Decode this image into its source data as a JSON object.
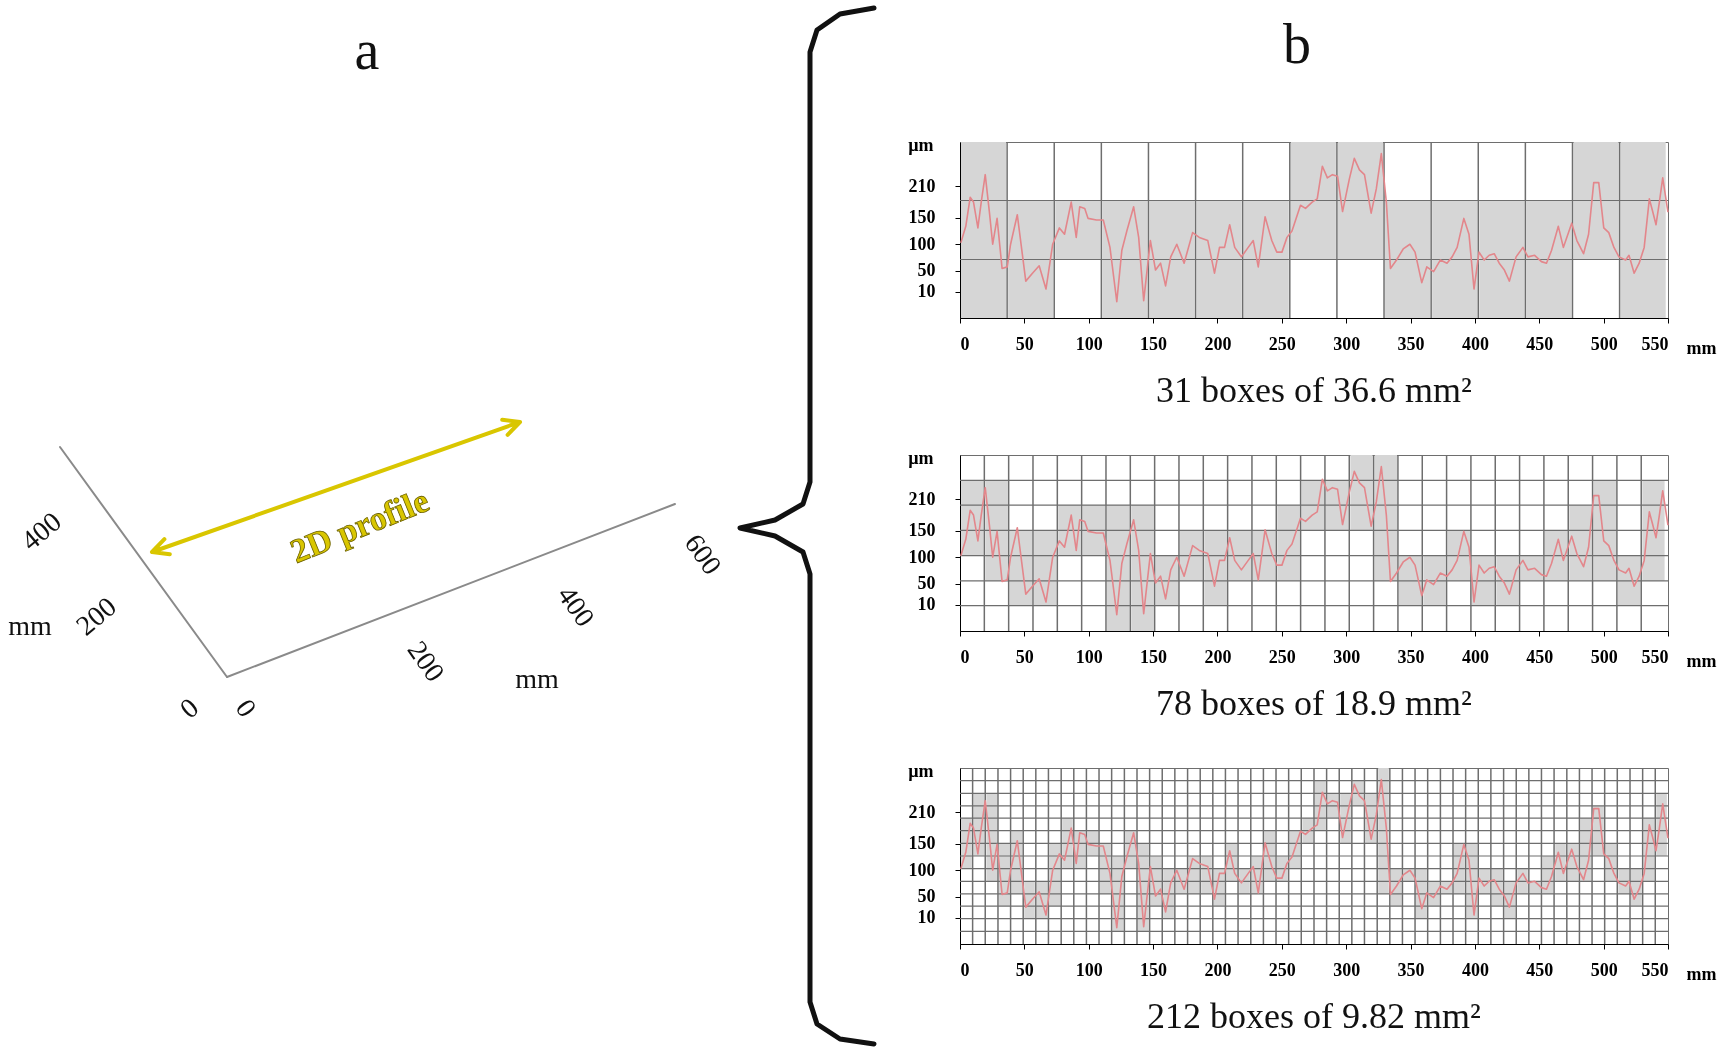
{
  "chart_data": [
    {
      "type": "other",
      "title": "a",
      "annotations": [
        "400",
        "200",
        "0",
        "mm",
        "0",
        "200",
        "400",
        "600",
        "mm",
        "2D profile"
      ]
    },
    {
      "type": "bar",
      "title": "b",
      "xlabel": "mm",
      "ylabel": "µm",
      "annotations": [
        "31 boxes of 36.6 mm²"
      ],
      "xlim": [
        0,
        550
      ],
      "xticks": [
        0,
        50,
        100,
        150,
        200,
        250,
        300,
        350,
        400,
        450,
        500,
        550
      ],
      "ylim": [
        -40,
        294
      ],
      "yticks": [
        10,
        50,
        100,
        150,
        210
      ],
      "ref_lines": [
        {
          "axis": "x",
          "value": 36.6,
          "color": "#6e6e6e"
        },
        {
          "axis": "x",
          "value": 73.2,
          "color": "#6e6e6e"
        },
        {
          "axis": "x",
          "value": 109.8,
          "color": "#6e6e6e"
        },
        {
          "axis": "x",
          "value": 146.4,
          "color": "#6e6e6e"
        },
        {
          "axis": "x",
          "value": 183,
          "color": "#6e6e6e"
        },
        {
          "axis": "x",
          "value": 219.6,
          "color": "#6e6e6e"
        },
        {
          "axis": "x",
          "value": 256.2,
          "color": "#6e6e6e"
        },
        {
          "axis": "x",
          "value": 292.8,
          "color": "#6e6e6e"
        },
        {
          "axis": "x",
          "value": 329.4,
          "color": "#6e6e6e"
        },
        {
          "axis": "x",
          "value": 366,
          "color": "#6e6e6e"
        },
        {
          "axis": "x",
          "value": 402.6,
          "color": "#6e6e6e"
        },
        {
          "axis": "x",
          "value": 439.2,
          "color": "#6e6e6e"
        },
        {
          "axis": "x",
          "value": 475.8,
          "color": "#6e6e6e"
        },
        {
          "axis": "x",
          "value": 512.4,
          "color": "#6e6e6e"
        },
        {
          "axis": "y",
          "value": 71,
          "color": "#6e6e6e"
        },
        {
          "axis": "y",
          "value": 183,
          "color": "#6e6e6e"
        }
      ],
      "series": [
        {
          "type": "bar",
          "color": "#d6d6d6",
          "x": [
            18.3,
            54.9,
            91.5,
            128.1,
            164.7,
            201.3,
            237.9,
            274.5,
            311.1,
            347.7,
            384.3,
            420.9,
            457.5,
            494.1,
            530.7
          ],
          "base": [
            -40,
            -40,
            71,
            -40,
            -40,
            -40,
            -40,
            71,
            71,
            -40,
            -40,
            -40,
            -40,
            71,
            -40
          ],
          "values": [
            334,
            223,
            112,
            223,
            223,
            223,
            223,
            223,
            223,
            223,
            223,
            223,
            223,
            223,
            334
          ]
        },
        {
          "type": "line",
          "color": "#e3868b",
          "x": [
            0.8,
            4.5,
            7.9,
            10.5,
            13.9,
            16.5,
            19.6,
            22.8,
            25.4,
            28.8,
            32.7,
            36.7,
            39.3,
            44.5,
            51.1,
            56.3,
            61.5,
            66.8,
            72,
            77.2,
            81.2,
            86.4,
            90.3,
            93,
            96.9,
            99.5,
            106,
            111.3,
            116.5,
            121.8,
            125.7,
            129.6,
            134.9,
            138.8,
            142.7,
            147.9,
            151.9,
            155.8,
            159.7,
            163.7,
            168.4,
            174.1,
            180.7,
            185.9,
            192.5,
            197.7,
            201.6,
            205.5,
            209.5,
            213.4,
            218.6,
            223.9,
            227.8,
            231.7,
            237,
            242.2,
            246.1,
            250.1,
            254,
            257.9,
            264.5,
            268.4,
            273.6,
            277.5,
            281.5,
            285.4,
            289.3,
            293.3,
            297.2,
            302.4,
            306.3,
            310.3,
            314.2,
            319.4,
            323.4,
            327.3,
            331.2,
            334.4,
            339.1,
            344.3,
            349.5,
            353.5,
            358.7,
            362.6,
            367.9,
            373.1,
            378.3,
            382.3,
            386.2,
            391.4,
            395.4,
            399.3,
            403.2,
            407.2,
            411.1,
            415,
            418.9,
            422.9,
            426.8,
            432,
            437.3,
            441.2,
            446.4,
            451.7,
            455.6,
            459.5,
            464.8,
            468.7,
            475.2,
            479.2,
            484.4,
            488.3,
            492.3,
            496.2,
            500.1,
            504,
            508,
            511.9,
            517.1,
            519.7,
            523.7,
            527.6,
            531.5,
            535.5,
            538.1,
            540.7,
            543.3,
            545.9,
            549.9
          ],
          "values": [
            104,
            134,
            189,
            180,
            131,
            180,
            232,
            162,
            100,
            149,
            54,
            57,
            100,
            156,
            30,
            45,
            59,
            15,
            100,
            131,
            119,
            180,
            113,
            171,
            168,
            149,
            146,
            146,
            94,
            -9,
            88,
            125,
            171,
            113,
            -7,
            107,
            51,
            64,
            21,
            76,
            100,
            64,
            122,
            113,
            107,
            45,
            94,
            94,
            137,
            94,
            76,
            94,
            107,
            57,
            152,
            107,
            85,
            85,
            113,
            125,
            174,
            168,
            180,
            186,
            248,
            226,
            232,
            229,
            162,
            223,
            263,
            241,
            232,
            159,
            205,
            272,
            180,
            54,
            70,
            91,
            100,
            85,
            27,
            57,
            48,
            70,
            64,
            76,
            94,
            149,
            119,
            15,
            85,
            70,
            79,
            82,
            64,
            51,
            30,
            76,
            94,
            76,
            79,
            67,
            64,
            88,
            134,
            94,
            140,
            107,
            82,
            119,
            217,
            217,
            131,
            122,
            94,
            76,
            70,
            79,
            45,
            64,
            94,
            186,
            162,
            137,
            180,
            226,
            162
          ]
        }
      ]
    },
    {
      "type": "bar",
      "xlabel": "mm",
      "ylabel": "µm",
      "annotations": [
        "78 boxes of 18.9 mm²"
      ],
      "xlim": [
        0,
        550
      ],
      "xticks": [
        0,
        50,
        100,
        150,
        200,
        250,
        300,
        350,
        400,
        450,
        500,
        550
      ],
      "ylim": [
        -40,
        294
      ],
      "yticks": [
        10,
        50,
        100,
        150,
        210
      ],
      "ref_lines": [
        {
          "axis": "x",
          "value": 18.9,
          "color": "#6e6e6e"
        },
        {
          "axis": "x",
          "value": 37.8,
          "color": "#6e6e6e"
        },
        {
          "axis": "x",
          "value": 56.7,
          "color": "#6e6e6e"
        },
        {
          "axis": "x",
          "value": 75.6,
          "color": "#6e6e6e"
        },
        {
          "axis": "x",
          "value": 94.5,
          "color": "#6e6e6e"
        },
        {
          "axis": "x",
          "value": 113.4,
          "color": "#6e6e6e"
        },
        {
          "axis": "x",
          "value": 132.3,
          "color": "#6e6e6e"
        },
        {
          "axis": "x",
          "value": 151.2,
          "color": "#6e6e6e"
        },
        {
          "axis": "x",
          "value": 170.1,
          "color": "#6e6e6e"
        },
        {
          "axis": "x",
          "value": 189,
          "color": "#6e6e6e"
        },
        {
          "axis": "x",
          "value": 207.9,
          "color": "#6e6e6e"
        },
        {
          "axis": "x",
          "value": 226.8,
          "color": "#6e6e6e"
        },
        {
          "axis": "x",
          "value": 245.7,
          "color": "#6e6e6e"
        },
        {
          "axis": "x",
          "value": 264.6,
          "color": "#6e6e6e"
        },
        {
          "axis": "x",
          "value": 283.5,
          "color": "#6e6e6e"
        },
        {
          "axis": "x",
          "value": 302.4,
          "color": "#6e6e6e"
        },
        {
          "axis": "x",
          "value": 321.3,
          "color": "#6e6e6e"
        },
        {
          "axis": "x",
          "value": 340.2,
          "color": "#6e6e6e"
        },
        {
          "axis": "x",
          "value": 359.1,
          "color": "#6e6e6e"
        },
        {
          "axis": "x",
          "value": 378,
          "color": "#6e6e6e"
        },
        {
          "axis": "x",
          "value": 396.9,
          "color": "#6e6e6e"
        },
        {
          "axis": "x",
          "value": 415.8,
          "color": "#6e6e6e"
        },
        {
          "axis": "x",
          "value": 434.7,
          "color": "#6e6e6e"
        },
        {
          "axis": "x",
          "value": 453.6,
          "color": "#6e6e6e"
        },
        {
          "axis": "x",
          "value": 472.5,
          "color": "#6e6e6e"
        },
        {
          "axis": "x",
          "value": 491.4,
          "color": "#6e6e6e"
        },
        {
          "axis": "x",
          "value": 510.3,
          "color": "#6e6e6e"
        },
        {
          "axis": "x",
          "value": 529.2,
          "color": "#6e6e6e"
        },
        {
          "axis": "y",
          "value": 8,
          "color": "#6e6e6e"
        },
        {
          "axis": "y",
          "value": 55,
          "color": "#6e6e6e"
        },
        {
          "axis": "y",
          "value": 103,
          "color": "#6e6e6e"
        },
        {
          "axis": "y",
          "value": 151,
          "color": "#6e6e6e"
        },
        {
          "axis": "y",
          "value": 199,
          "color": "#6e6e6e"
        },
        {
          "axis": "y",
          "value": 246,
          "color": "#6e6e6e"
        }
      ],
      "series": [
        {
          "type": "bar",
          "color": "#d6d6d6",
          "x": [
            9.5,
            28.4,
            47.3,
            66.2,
            85.1,
            104,
            122.9,
            141.8,
            160.7,
            179.6,
            198.5,
            217.4,
            236.3,
            255.2,
            274.1,
            293,
            311.9,
            330.8,
            349.7,
            368.6,
            387.5,
            406.4,
            425.3,
            444.2,
            463.1,
            482,
            500.9,
            519.8,
            538.7
          ],
          "base": [
            103,
            55,
            8,
            8,
            103,
            103,
            -40,
            -40,
            8,
            55,
            8,
            55,
            55,
            55,
            151,
            151,
            151,
            55,
            8,
            8,
            55,
            8,
            8,
            55,
            55,
            55,
            55,
            8,
            55
          ],
          "values": [
            143,
            191,
            143,
            143,
            96,
            96,
            239,
            239,
            95,
            96,
            143,
            96,
            96,
            144,
            95,
            95,
            143,
            239,
            95,
            95,
            96,
            95,
            95,
            48,
            96,
            144,
            191,
            95,
            191
          ]
        },
        {
          "type": "line",
          "color": "#e3868b",
          "x": [
            0.8,
            4.5,
            7.9,
            10.5,
            13.9,
            16.5,
            19.6,
            22.8,
            25.4,
            28.8,
            32.7,
            36.7,
            39.3,
            44.5,
            51.1,
            56.3,
            61.5,
            66.8,
            72,
            77.2,
            81.2,
            86.4,
            90.3,
            93,
            96.9,
            99.5,
            106,
            111.3,
            116.5,
            121.8,
            125.7,
            129.6,
            134.9,
            138.8,
            142.7,
            147.9,
            151.9,
            155.8,
            159.7,
            163.7,
            168.4,
            174.1,
            180.7,
            185.9,
            192.5,
            197.7,
            201.6,
            205.5,
            209.5,
            213.4,
            218.6,
            223.9,
            227.8,
            231.7,
            237,
            242.2,
            246.1,
            250.1,
            254,
            257.9,
            264.5,
            268.4,
            273.6,
            277.5,
            281.5,
            285.4,
            289.3,
            293.3,
            297.2,
            302.4,
            306.3,
            310.3,
            314.2,
            319.4,
            323.4,
            327.3,
            331.2,
            334.4,
            339.1,
            344.3,
            349.5,
            353.5,
            358.7,
            362.6,
            367.9,
            373.1,
            378.3,
            382.3,
            386.2,
            391.4,
            395.4,
            399.3,
            403.2,
            407.2,
            411.1,
            415,
            418.9,
            422.9,
            426.8,
            432,
            437.3,
            441.2,
            446.4,
            451.7,
            455.6,
            459.5,
            464.8,
            468.7,
            475.2,
            479.2,
            484.4,
            488.3,
            492.3,
            496.2,
            500.1,
            504,
            508,
            511.9,
            517.1,
            519.7,
            523.7,
            527.6,
            531.5,
            535.5,
            538.1,
            540.7,
            543.3,
            545.9,
            549.9
          ],
          "values": [
            104,
            134,
            189,
            180,
            131,
            180,
            232,
            162,
            100,
            149,
            54,
            57,
            100,
            156,
            30,
            45,
            59,
            15,
            100,
            131,
            119,
            180,
            113,
            171,
            168,
            149,
            146,
            146,
            94,
            -9,
            88,
            125,
            171,
            113,
            -7,
            107,
            51,
            64,
            21,
            76,
            100,
            64,
            122,
            113,
            107,
            45,
            94,
            94,
            137,
            94,
            76,
            94,
            107,
            57,
            152,
            107,
            85,
            85,
            113,
            125,
            174,
            168,
            180,
            186,
            248,
            226,
            232,
            229,
            162,
            223,
            263,
            241,
            232,
            159,
            205,
            272,
            180,
            54,
            70,
            91,
            100,
            85,
            27,
            57,
            48,
            70,
            64,
            76,
            94,
            149,
            119,
            15,
            85,
            70,
            79,
            82,
            64,
            51,
            30,
            76,
            94,
            76,
            79,
            67,
            64,
            88,
            134,
            94,
            140,
            107,
            82,
            119,
            217,
            217,
            131,
            122,
            94,
            76,
            70,
            79,
            45,
            64,
            94,
            186,
            162,
            137,
            180,
            226,
            162
          ]
        }
      ]
    },
    {
      "type": "bar",
      "xlabel": "mm",
      "ylabel": "µm",
      "annotations": [
        "212 boxes of 9.82 mm²"
      ],
      "xlim": [
        0,
        550
      ],
      "xticks": [
        0,
        50,
        100,
        150,
        200,
        250,
        300,
        350,
        400,
        450,
        500,
        550
      ],
      "ylim": [
        -40,
        294
      ],
      "yticks": [
        10,
        50,
        100,
        150,
        210
      ],
      "ref_lines": [
        {
          "axis": "x",
          "value": 9.8,
          "color": "#6e6e6e"
        },
        {
          "axis": "x",
          "value": 19.6,
          "color": "#6e6e6e"
        },
        {
          "axis": "x",
          "value": 29.5,
          "color": "#6e6e6e"
        },
        {
          "axis": "x",
          "value": 39.3,
          "color": "#6e6e6e"
        },
        {
          "axis": "x",
          "value": 49.1,
          "color": "#6e6e6e"
        },
        {
          "axis": "x",
          "value": 58.9,
          "color": "#6e6e6e"
        },
        {
          "axis": "x",
          "value": 68.7,
          "color": "#6e6e6e"
        },
        {
          "axis": "x",
          "value": 78.6,
          "color": "#6e6e6e"
        },
        {
          "axis": "x",
          "value": 88.4,
          "color": "#6e6e6e"
        },
        {
          "axis": "x",
          "value": 98.2,
          "color": "#6e6e6e"
        },
        {
          "axis": "x",
          "value": 108,
          "color": "#6e6e6e"
        },
        {
          "axis": "x",
          "value": 117.8,
          "color": "#6e6e6e"
        },
        {
          "axis": "x",
          "value": 127.7,
          "color": "#6e6e6e"
        },
        {
          "axis": "x",
          "value": 137.5,
          "color": "#6e6e6e"
        },
        {
          "axis": "x",
          "value": 147.3,
          "color": "#6e6e6e"
        },
        {
          "axis": "x",
          "value": 157.1,
          "color": "#6e6e6e"
        },
        {
          "axis": "x",
          "value": 166.9,
          "color": "#6e6e6e"
        },
        {
          "axis": "x",
          "value": 176.8,
          "color": "#6e6e6e"
        },
        {
          "axis": "x",
          "value": 186.6,
          "color": "#6e6e6e"
        },
        {
          "axis": "x",
          "value": 196.4,
          "color": "#6e6e6e"
        },
        {
          "axis": "x",
          "value": 206.2,
          "color": "#6e6e6e"
        },
        {
          "axis": "x",
          "value": 216,
          "color": "#6e6e6e"
        },
        {
          "axis": "x",
          "value": 225.9,
          "color": "#6e6e6e"
        },
        {
          "axis": "x",
          "value": 235.7,
          "color": "#6e6e6e"
        },
        {
          "axis": "x",
          "value": 245.5,
          "color": "#6e6e6e"
        },
        {
          "axis": "x",
          "value": 255.3,
          "color": "#6e6e6e"
        },
        {
          "axis": "x",
          "value": 265.1,
          "color": "#6e6e6e"
        },
        {
          "axis": "x",
          "value": 275,
          "color": "#6e6e6e"
        },
        {
          "axis": "x",
          "value": 284.8,
          "color": "#6e6e6e"
        },
        {
          "axis": "x",
          "value": 294.6,
          "color": "#6e6e6e"
        },
        {
          "axis": "x",
          "value": 304.4,
          "color": "#6e6e6e"
        },
        {
          "axis": "x",
          "value": 314.2,
          "color": "#6e6e6e"
        },
        {
          "axis": "x",
          "value": 324.1,
          "color": "#6e6e6e"
        },
        {
          "axis": "x",
          "value": 333.9,
          "color": "#6e6e6e"
        },
        {
          "axis": "x",
          "value": 343.7,
          "color": "#6e6e6e"
        },
        {
          "axis": "x",
          "value": 353.5,
          "color": "#6e6e6e"
        },
        {
          "axis": "x",
          "value": 363.3,
          "color": "#6e6e6e"
        },
        {
          "axis": "x",
          "value": 373.2,
          "color": "#6e6e6e"
        },
        {
          "axis": "x",
          "value": 383,
          "color": "#6e6e6e"
        },
        {
          "axis": "x",
          "value": 392.8,
          "color": "#6e6e6e"
        },
        {
          "axis": "x",
          "value": 402.6,
          "color": "#6e6e6e"
        },
        {
          "axis": "x",
          "value": 412.4,
          "color": "#6e6e6e"
        },
        {
          "axis": "x",
          "value": 422.3,
          "color": "#6e6e6e"
        },
        {
          "axis": "x",
          "value": 432.1,
          "color": "#6e6e6e"
        },
        {
          "axis": "x",
          "value": 441.9,
          "color": "#6e6e6e"
        },
        {
          "axis": "x",
          "value": 451.7,
          "color": "#6e6e6e"
        },
        {
          "axis": "x",
          "value": 461.5,
          "color": "#6e6e6e"
        },
        {
          "axis": "x",
          "value": 471.4,
          "color": "#6e6e6e"
        },
        {
          "axis": "x",
          "value": 481.2,
          "color": "#6e6e6e"
        },
        {
          "axis": "x",
          "value": 491,
          "color": "#6e6e6e"
        },
        {
          "axis": "x",
          "value": 500.8,
          "color": "#6e6e6e"
        },
        {
          "axis": "x",
          "value": 510.6,
          "color": "#6e6e6e"
        },
        {
          "axis": "x",
          "value": 520.5,
          "color": "#6e6e6e"
        },
        {
          "axis": "x",
          "value": 530.3,
          "color": "#6e6e6e"
        },
        {
          "axis": "x",
          "value": 540.1,
          "color": "#6e6e6e"
        },
        {
          "axis": "y",
          "value": -16,
          "color": "#6e6e6e"
        },
        {
          "axis": "y",
          "value": 8,
          "color": "#6e6e6e"
        },
        {
          "axis": "y",
          "value": 32,
          "color": "#6e6e6e"
        },
        {
          "axis": "y",
          "value": 55,
          "color": "#6e6e6e"
        },
        {
          "axis": "y",
          "value": 79,
          "color": "#6e6e6e"
        },
        {
          "axis": "y",
          "value": 103,
          "color": "#6e6e6e"
        },
        {
          "axis": "y",
          "value": 127,
          "color": "#6e6e6e"
        },
        {
          "axis": "y",
          "value": 151,
          "color": "#6e6e6e"
        },
        {
          "axis": "y",
          "value": 175,
          "color": "#6e6e6e"
        },
        {
          "axis": "y",
          "value": 199,
          "color": "#6e6e6e"
        },
        {
          "axis": "y",
          "value": 222,
          "color": "#6e6e6e"
        },
        {
          "axis": "y",
          "value": 246,
          "color": "#6e6e6e"
        },
        {
          "axis": "y",
          "value": 270,
          "color": "#6e6e6e"
        }
      ],
      "series": [
        {
          "type": "bar",
          "color": "#d6d6d6",
          "x": [
            4.9,
            14.7,
            24.6,
            34.4,
            44.2,
            54,
            63.8,
            73.7,
            83.5,
            93.3,
            103.1,
            112.9,
            122.8,
            132.6,
            142.4,
            152.2,
            162,
            171.9,
            181.7,
            191.5,
            201.3,
            211.1,
            221,
            230.8,
            240.6,
            250.4,
            260.2,
            270.1,
            279.9,
            289.7,
            299.5,
            309.3,
            319.2,
            329,
            338.8,
            348.6,
            358.4,
            368.3,
            378.1,
            387.9,
            397.7,
            407.5,
            417.4,
            427.2,
            437,
            446.8,
            456.6,
            466.5,
            476.3,
            486.1,
            495.9,
            505.7,
            515.6,
            525.4,
            535.2,
            545
          ],
          "base": [
            103,
            127,
            79,
            32,
            55,
            8,
            8,
            32,
            103,
            103,
            127,
            55,
            -16,
            103,
            -16,
            32,
            8,
            55,
            55,
            55,
            32,
            79,
            55,
            55,
            79,
            79,
            103,
            151,
            175,
            199,
            151,
            222,
            151,
            55,
            32,
            79,
            8,
            32,
            55,
            55,
            8,
            55,
            32,
            8,
            55,
            55,
            55,
            79,
            79,
            79,
            127,
            79,
            55,
            32,
            79,
            127
          ],
          "values": [
            96,
            119,
            167,
            119,
            120,
            71,
            71,
            119,
            96,
            72,
            48,
            96,
            143,
            72,
            167,
            95,
            95,
            48,
            72,
            72,
            71,
            72,
            48,
            72,
            96,
            48,
            72,
            48,
            95,
            47,
            95,
            48,
            95,
            239,
            71,
            24,
            95,
            47,
            24,
            96,
            143,
            48,
            71,
            71,
            48,
            24,
            72,
            72,
            72,
            120,
            95,
            72,
            48,
            71,
            120,
            119
          ]
        },
        {
          "type": "line",
          "color": "#e3868b",
          "x": [
            0.8,
            4.5,
            7.9,
            10.5,
            13.9,
            16.5,
            19.6,
            22.8,
            25.4,
            28.8,
            32.7,
            36.7,
            39.3,
            44.5,
            51.1,
            56.3,
            61.5,
            66.8,
            72,
            77.2,
            81.2,
            86.4,
            90.3,
            93,
            96.9,
            99.5,
            106,
            111.3,
            116.5,
            121.8,
            125.7,
            129.6,
            134.9,
            138.8,
            142.7,
            147.9,
            151.9,
            155.8,
            159.7,
            163.7,
            168.4,
            174.1,
            180.7,
            185.9,
            192.5,
            197.7,
            201.6,
            205.5,
            209.5,
            213.4,
            218.6,
            223.9,
            227.8,
            231.7,
            237,
            242.2,
            246.1,
            250.1,
            254,
            257.9,
            264.5,
            268.4,
            273.6,
            277.5,
            281.5,
            285.4,
            289.3,
            293.3,
            297.2,
            302.4,
            306.3,
            310.3,
            314.2,
            319.4,
            323.4,
            327.3,
            331.2,
            334.4,
            339.1,
            344.3,
            349.5,
            353.5,
            358.7,
            362.6,
            367.9,
            373.1,
            378.3,
            382.3,
            386.2,
            391.4,
            395.4,
            399.3,
            403.2,
            407.2,
            411.1,
            415,
            418.9,
            422.9,
            426.8,
            432,
            437.3,
            441.2,
            446.4,
            451.7,
            455.6,
            459.5,
            464.8,
            468.7,
            475.2,
            479.2,
            484.4,
            488.3,
            492.3,
            496.2,
            500.1,
            504,
            508,
            511.9,
            517.1,
            519.7,
            523.7,
            527.6,
            531.5,
            535.5,
            538.1,
            540.7,
            543.3,
            545.9,
            549.9
          ],
          "values": [
            104,
            134,
            189,
            180,
            131,
            180,
            232,
            162,
            100,
            149,
            54,
            57,
            100,
            156,
            30,
            45,
            59,
            15,
            100,
            131,
            119,
            180,
            113,
            171,
            168,
            149,
            146,
            146,
            94,
            -9,
            88,
            125,
            171,
            113,
            -7,
            107,
            51,
            64,
            21,
            76,
            100,
            64,
            122,
            113,
            107,
            45,
            94,
            94,
            137,
            94,
            76,
            94,
            107,
            57,
            152,
            107,
            85,
            85,
            113,
            125,
            174,
            168,
            180,
            186,
            248,
            226,
            232,
            229,
            162,
            223,
            263,
            241,
            232,
            159,
            205,
            272,
            180,
            54,
            70,
            91,
            100,
            85,
            27,
            57,
            48,
            70,
            64,
            76,
            94,
            149,
            119,
            15,
            85,
            70,
            79,
            82,
            64,
            51,
            30,
            76,
            94,
            76,
            79,
            67,
            64,
            88,
            134,
            94,
            140,
            107,
            82,
            119,
            217,
            217,
            131,
            122,
            94,
            76,
            70,
            79,
            45,
            64,
            94,
            186,
            162,
            137,
            180,
            226,
            162
          ]
        }
      ]
    }
  ]
}
